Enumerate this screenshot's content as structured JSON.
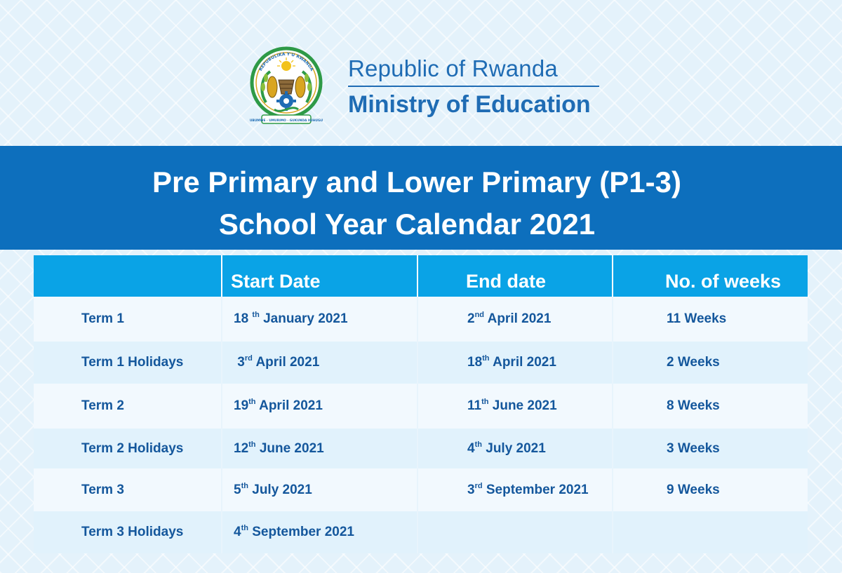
{
  "header": {
    "emblem": {
      "top_text": "REPUBULIKA Y'U RWANDA",
      "motto": "UBUMWE · UMURIMO · GUKUNDA IGIHUGU"
    },
    "republic": "Republic of Rwanda",
    "ministry": "Ministry of Education"
  },
  "banner": {
    "line1": "Pre Primary and Lower Primary (P1-3)",
    "line2": "School Year Calendar 2021"
  },
  "table": {
    "headers": [
      "",
      "Start Date",
      "End date",
      "No. of weeks"
    ],
    "rows": [
      {
        "period": "Term 1",
        "start": {
          "day": "18",
          "suffix": "th",
          "rest": "January 2021"
        },
        "end": {
          "day": "2",
          "suffix": "nd",
          "rest": "April 2021"
        },
        "weeks": "11 Weeks"
      },
      {
        "period": "Term 1 Holidays",
        "start": {
          "day": "3",
          "suffix": "rd",
          "rest": "April 2021"
        },
        "end": {
          "day": "18",
          "suffix": "th",
          "rest": "April 2021"
        },
        "weeks": "2 Weeks"
      },
      {
        "period": "Term 2",
        "start": {
          "day": "19",
          "suffix": "th",
          "rest": "April 2021"
        },
        "end": {
          "day": "11",
          "suffix": "th",
          "rest": "June 2021"
        },
        "weeks": "8 Weeks"
      },
      {
        "period": "Term 2 Holidays",
        "start": {
          "day": "12",
          "suffix": "th",
          "rest": "June 2021"
        },
        "end": {
          "day": "4",
          "suffix": "th",
          "rest": "July 2021"
        },
        "weeks": "3 Weeks"
      },
      {
        "period": "Term 3",
        "start": {
          "day": "5",
          "suffix": "th",
          "rest": "July 2021"
        },
        "end": {
          "day": "3",
          "suffix": "rd",
          "rest": "September 2021"
        },
        "weeks": "9 Weeks"
      },
      {
        "period": "Term 3 Holidays",
        "start": {
          "day": "4",
          "suffix": "th",
          "rest": "September 2021"
        },
        "end": {
          "day": "",
          "suffix": "",
          "rest": ""
        },
        "weeks": ""
      }
    ]
  },
  "colors": {
    "brand_blue": "#1f6cb4",
    "banner_blue": "#0d6fbd",
    "header_cyan": "#0aa3e6",
    "cell_text": "#14579c",
    "emblem_green": "#2e9a47",
    "emblem_gold": "#d9a520"
  }
}
